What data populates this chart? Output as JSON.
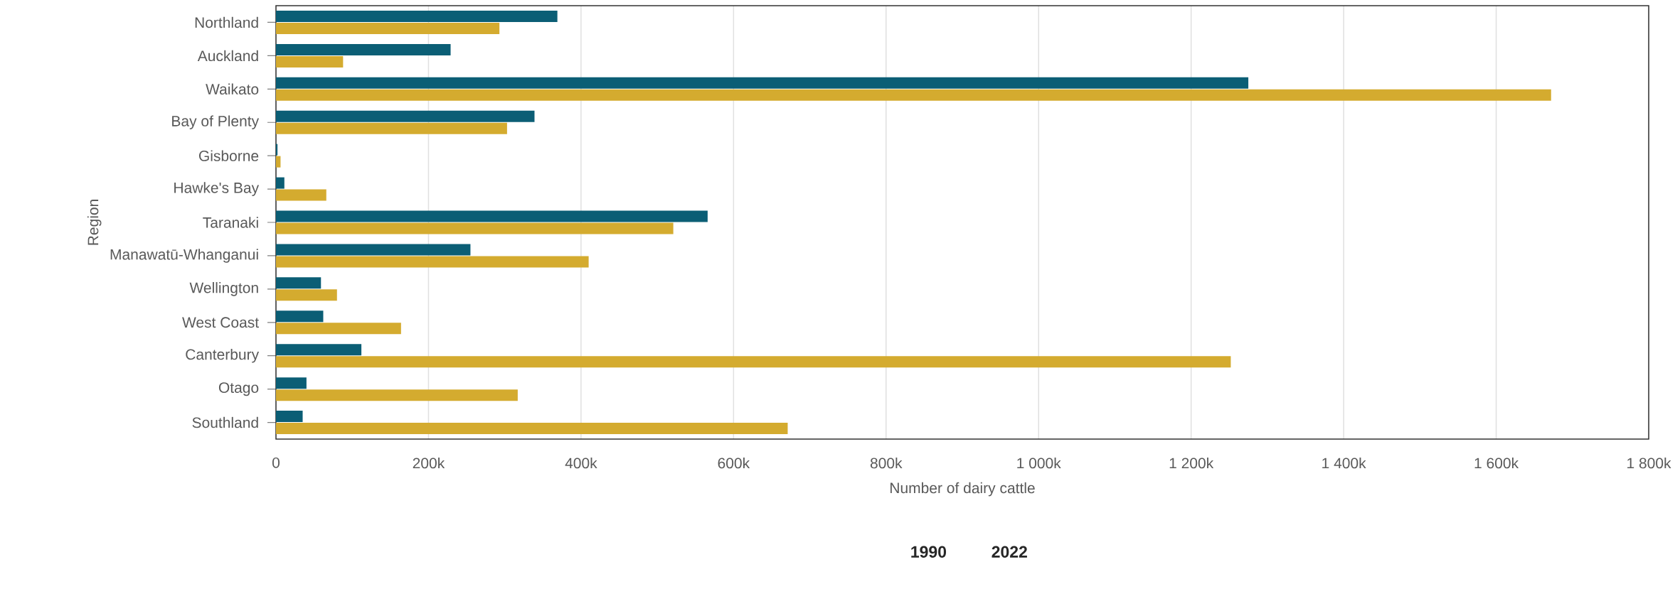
{
  "chart_data": {
    "type": "bar",
    "orientation": "horizontal",
    "xlabel": "Number of dairy cattle",
    "ylabel": "Region",
    "categories": [
      "Northland",
      "Auckland",
      "Waikato",
      "Bay of Plenty",
      "Gisborne",
      "Hawke's Bay",
      "Taranaki",
      "Manawatū-Whanganui",
      "Wellington",
      "West Coast",
      "Canterbury",
      "Otago",
      "Southland"
    ],
    "series": [
      {
        "name": "1990",
        "color": "#0b5e75",
        "values": [
          369000,
          229000,
          1275000,
          339000,
          2000,
          11000,
          566000,
          255000,
          59000,
          62000,
          112000,
          40000,
          35000
        ]
      },
      {
        "name": "2022",
        "color": "#d4ab2f",
        "values": [
          293000,
          88000,
          1672000,
          303000,
          6000,
          66000,
          521000,
          410000,
          80000,
          164000,
          1252000,
          317000,
          671000
        ]
      }
    ],
    "xlim": [
      0,
      1800000
    ],
    "xticks": [
      0,
      {
        "value": 200000,
        "label": "200k"
      },
      {
        "value": 400000,
        "label": "400k"
      },
      {
        "value": 600000,
        "label": "600k"
      },
      {
        "value": 800000,
        "label": "800k"
      },
      {
        "value": 1000000,
        "label": "1 000k"
      },
      {
        "value": 1200000,
        "label": "1 200k"
      },
      {
        "value": 1400000,
        "label": "1 400k"
      },
      {
        "value": 1600000,
        "label": "1 600k"
      },
      {
        "value": 1800000,
        "label": "1 800k"
      }
    ],
    "grid": "x",
    "legend": "bottom"
  }
}
